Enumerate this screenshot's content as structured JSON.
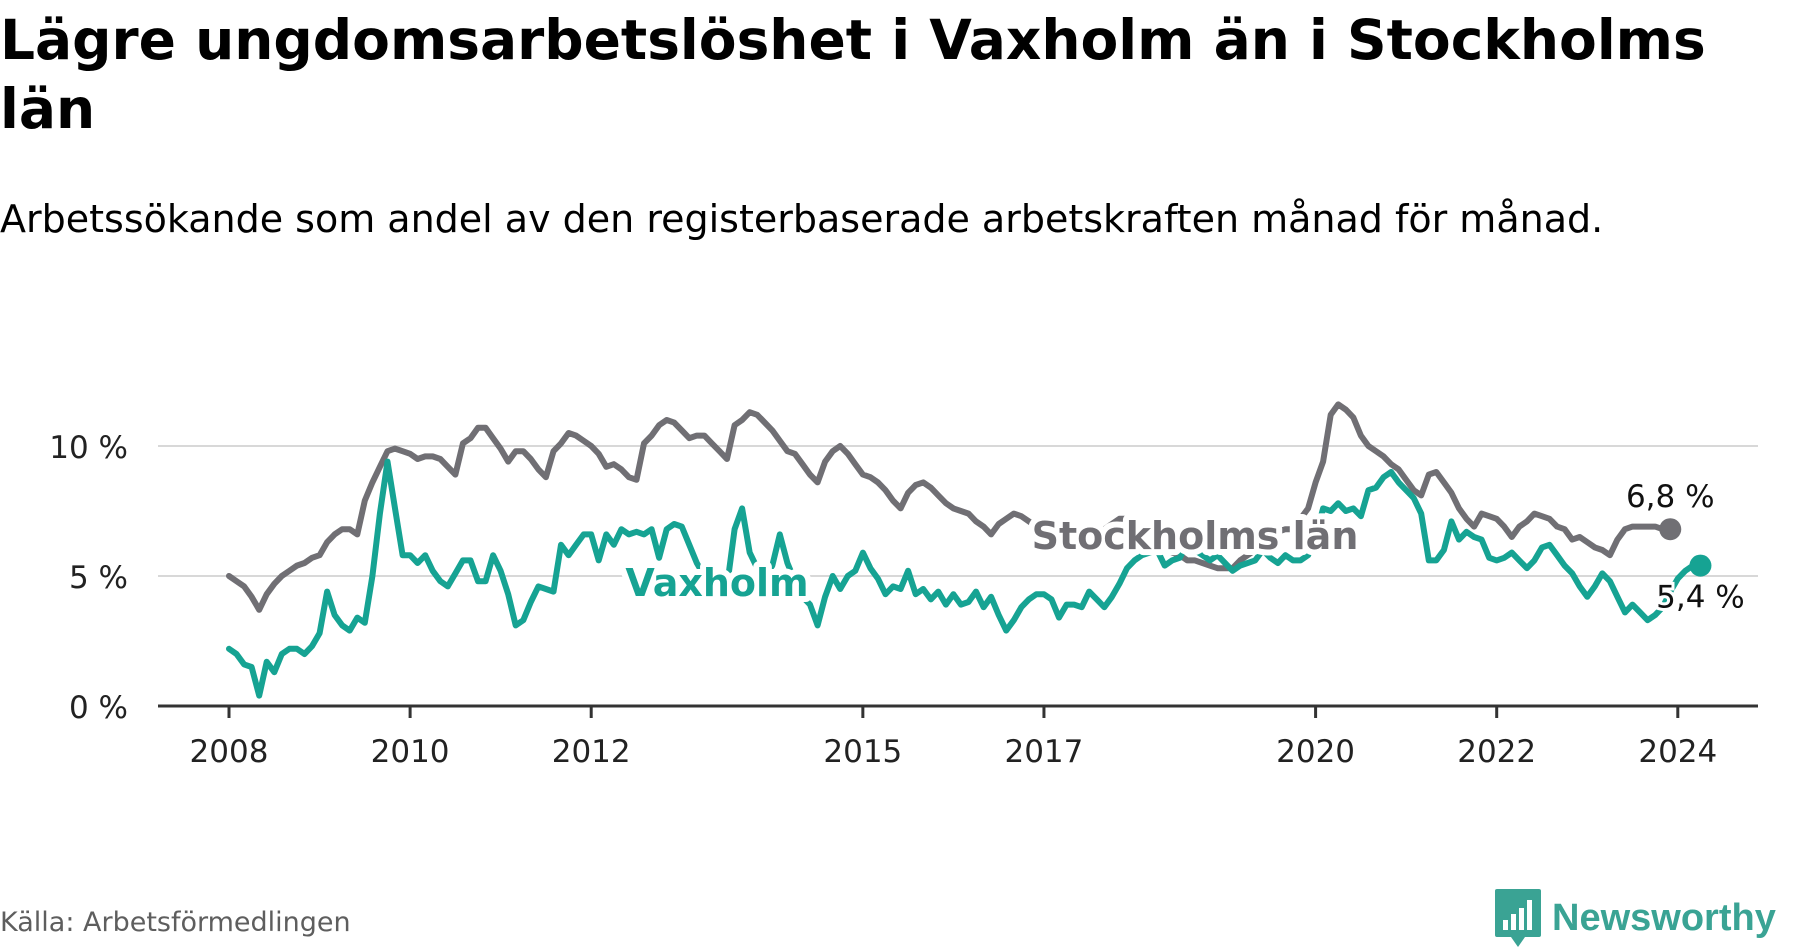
{
  "title": "Lägre ungdomsarbetslöshet i Vaxholm än i Stockholms län",
  "subtitle": "Arbetssökande som andel av den registerbaserade arbetskraften månad för månad.",
  "source": "Källa: Arbetsförmedlingen",
  "brand": {
    "name": "Newsworthy",
    "icon": "newsworthy-logo-icon",
    "color": "#3aa394"
  },
  "colors": {
    "stockholm": "#706f74",
    "vaxholm": "#16a393",
    "grid": "#d8d8d8",
    "axis": "#333333"
  },
  "chart_data": {
    "type": "line",
    "title": "Lägre ungdomsarbetslöshet i Vaxholm än i Stockholms län",
    "xlabel": "",
    "ylabel": "",
    "x_start": "2008-01",
    "frequency": "monthly",
    "xlim": [
      2008.0,
      2024.9
    ],
    "ylim": [
      0,
      10
    ],
    "yticks": [
      {
        "value": 0,
        "label": "0 %"
      },
      {
        "value": 5,
        "label": "5 %"
      },
      {
        "value": 10,
        "label": "10 %"
      }
    ],
    "xticks": [
      {
        "value": 2008,
        "label": "2008"
      },
      {
        "value": 2010,
        "label": "2010"
      },
      {
        "value": 2012,
        "label": "2012"
      },
      {
        "value": 2015,
        "label": "2015"
      },
      {
        "value": 2017,
        "label": "2017"
      },
      {
        "value": 2020,
        "label": "2020"
      },
      {
        "value": 2022,
        "label": "2022"
      },
      {
        "value": 2024,
        "label": "2024"
      }
    ],
    "series": [
      {
        "name": "Stockholms län",
        "label": "Stockholms län",
        "end_label": "6,8 %",
        "color": "#706f74",
        "values": [
          5.0,
          4.8,
          4.6,
          4.2,
          3.7,
          4.3,
          4.7,
          5.0,
          5.2,
          5.4,
          5.5,
          5.7,
          5.8,
          6.3,
          6.6,
          6.8,
          6.8,
          6.6,
          7.9,
          8.6,
          9.2,
          9.8,
          9.9,
          9.8,
          9.7,
          9.5,
          9.6,
          9.6,
          9.5,
          9.2,
          8.9,
          10.1,
          10.3,
          10.7,
          10.7,
          10.3,
          9.9,
          9.4,
          9.8,
          9.8,
          9.5,
          9.1,
          8.8,
          9.8,
          10.1,
          10.5,
          10.4,
          10.2,
          10.0,
          9.7,
          9.2,
          9.3,
          9.1,
          8.8,
          8.7,
          10.1,
          10.4,
          10.8,
          11.0,
          10.9,
          10.6,
          10.3,
          10.4,
          10.4,
          10.1,
          9.8,
          9.5,
          10.8,
          11.0,
          11.3,
          11.2,
          10.9,
          10.6,
          10.2,
          9.8,
          9.7,
          9.3,
          8.9,
          8.6,
          9.4,
          9.8,
          10.0,
          9.7,
          9.3,
          8.9,
          8.8,
          8.6,
          8.3,
          7.9,
          7.6,
          8.2,
          8.5,
          8.6,
          8.4,
          8.1,
          7.8,
          7.6,
          7.5,
          7.4,
          7.1,
          6.9,
          6.6,
          7.0,
          7.2,
          7.4,
          7.3,
          7.1,
          6.9,
          6.7,
          6.5,
          6.3,
          6.1,
          6.2,
          6.4,
          6.4,
          6.6,
          6.8,
          7.0,
          7.2,
          7.2,
          7.0,
          6.8,
          6.7,
          6.4,
          6.2,
          5.9,
          5.8,
          5.6,
          5.6,
          5.5,
          5.4,
          5.3,
          5.3,
          5.3,
          5.6,
          5.8,
          6.0,
          6.3,
          6.5,
          6.7,
          6.8,
          6.8,
          7.2,
          7.6,
          8.6,
          9.4,
          11.2,
          11.6,
          11.4,
          11.1,
          10.4,
          10.0,
          9.8,
          9.6,
          9.3,
          9.1,
          8.7,
          8.3,
          8.1,
          8.9,
          9.0,
          8.6,
          8.2,
          7.6,
          7.2,
          6.9,
          7.4,
          7.3,
          7.2,
          6.9,
          6.5,
          6.9,
          7.1,
          7.4,
          7.3,
          7.2,
          6.9,
          6.8,
          6.4,
          6.5,
          6.3,
          6.1,
          6.0,
          5.8,
          6.4,
          6.8,
          6.9,
          6.9,
          6.9,
          6.9,
          6.8,
          6.8
        ]
      },
      {
        "name": "Vaxholm",
        "label": "Vaxholm",
        "end_label": "5,4 %",
        "color": "#16a393",
        "values": [
          2.2,
          2.0,
          1.6,
          1.5,
          0.4,
          1.7,
          1.3,
          2.0,
          2.2,
          2.2,
          2.0,
          2.3,
          2.8,
          4.4,
          3.5,
          3.1,
          2.9,
          3.4,
          3.2,
          5.0,
          7.4,
          9.4,
          7.6,
          5.8,
          5.8,
          5.5,
          5.8,
          5.2,
          4.8,
          4.6,
          5.1,
          5.6,
          5.6,
          4.8,
          4.8,
          5.8,
          5.2,
          4.3,
          3.1,
          3.3,
          4.0,
          4.6,
          4.5,
          4.4,
          6.2,
          5.8,
          6.2,
          6.6,
          6.6,
          5.6,
          6.6,
          6.2,
          6.8,
          6.6,
          6.7,
          6.6,
          6.8,
          5.7,
          6.8,
          7.0,
          6.9,
          6.2,
          5.5,
          5.0,
          4.5,
          4.2,
          4.6,
          6.8,
          7.6,
          5.9,
          5.3,
          5.0,
          5.4,
          6.6,
          5.5,
          4.8,
          4.2,
          3.9,
          3.1,
          4.2,
          5.0,
          4.5,
          5.0,
          5.2,
          5.9,
          5.3,
          4.9,
          4.3,
          4.6,
          4.5,
          5.2,
          4.3,
          4.5,
          4.1,
          4.4,
          3.9,
          4.3,
          3.9,
          4.0,
          4.4,
          3.8,
          4.2,
          3.5,
          2.9,
          3.3,
          3.8,
          4.1,
          4.3,
          4.3,
          4.1,
          3.4,
          3.9,
          3.9,
          3.8,
          4.4,
          4.1,
          3.8,
          4.2,
          4.7,
          5.3,
          5.6,
          5.8,
          5.9,
          6.0,
          5.4,
          5.6,
          5.7,
          6.3,
          6.0,
          5.8,
          5.6,
          5.8,
          5.5,
          5.2,
          5.4,
          5.5,
          5.6,
          6.0,
          5.7,
          5.5,
          5.8,
          5.6,
          5.6,
          5.8,
          6.5,
          7.6,
          7.5,
          7.8,
          7.5,
          7.6,
          7.3,
          8.3,
          8.4,
          8.8,
          9.0,
          8.6,
          8.3,
          8.0,
          7.4,
          5.6,
          5.6,
          6.0,
          7.1,
          6.4,
          6.7,
          6.5,
          6.4,
          5.7,
          5.6,
          5.7,
          5.9,
          5.6,
          5.3,
          5.6,
          6.1,
          6.2,
          5.8,
          5.4,
          5.1,
          4.6,
          4.2,
          4.6,
          5.1,
          4.8,
          4.2,
          3.6,
          3.9,
          3.6,
          3.3,
          3.5,
          3.8,
          4.4,
          4.9,
          5.2,
          5.4,
          5.4
        ]
      }
    ]
  }
}
